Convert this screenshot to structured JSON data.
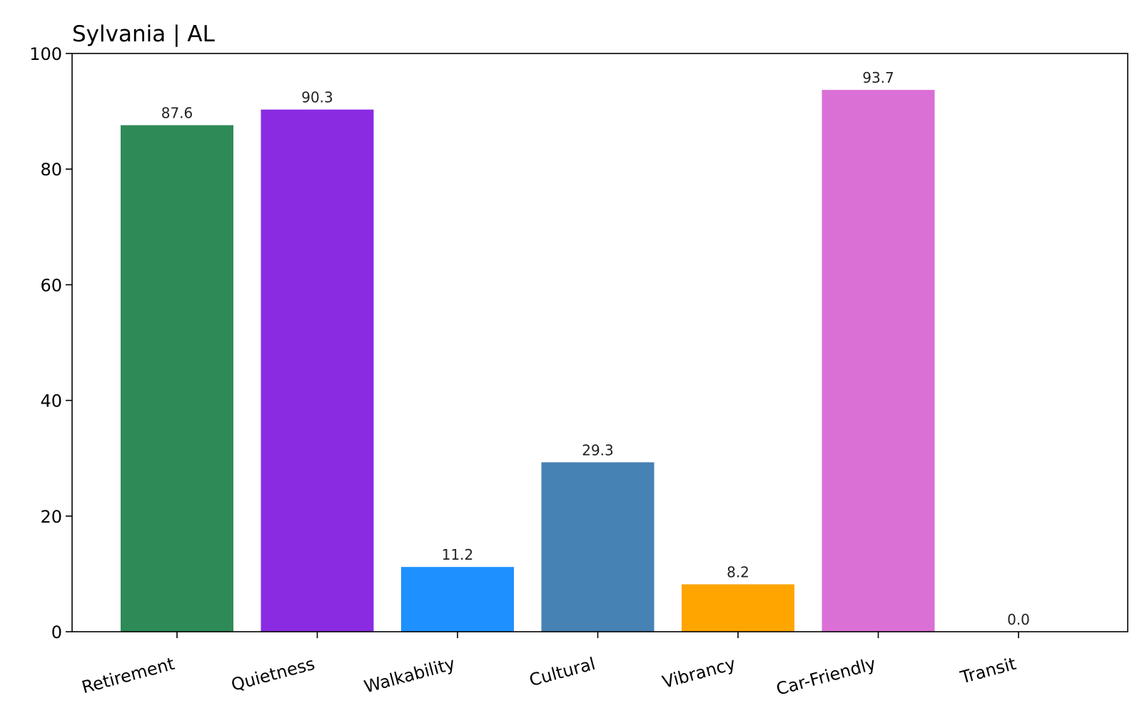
{
  "chart_data": {
    "type": "bar",
    "title": "Sylvania | AL",
    "xlabel": "",
    "ylabel": "",
    "ylim": [
      0,
      100
    ],
    "yticks": [
      0,
      20,
      40,
      60,
      80,
      100
    ],
    "grid": false,
    "categories": [
      "Retirement",
      "Quietness",
      "Walkability",
      "Cultural",
      "Vibrancy",
      "Car-Friendly",
      "Transit"
    ],
    "values": [
      87.6,
      90.3,
      11.2,
      29.3,
      8.2,
      93.7,
      0.0
    ],
    "value_labels": [
      "87.6",
      "90.3",
      "11.2",
      "29.3",
      "8.2",
      "93.7",
      "0.0"
    ],
    "colors": [
      "#2e8b57",
      "#8a2be2",
      "#1e90ff",
      "#4682b4",
      "#ffa500",
      "#da70d6",
      "#c0c0c0"
    ]
  }
}
